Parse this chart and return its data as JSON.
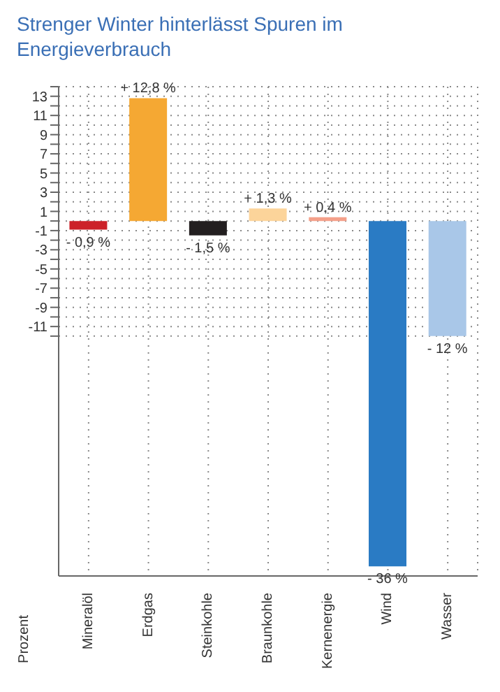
{
  "chart_data": {
    "type": "bar",
    "title": "Strenger Winter hinterlässt Spuren im Energieverbrauch",
    "ylabel": "Prozent",
    "categories": [
      "Mineralöl",
      "Erdgas",
      "Steinkohle",
      "Braunkohle",
      "Kernenergie",
      "Wind",
      "Wasser"
    ],
    "values": [
      -0.9,
      12.8,
      -1.5,
      1.3,
      0.4,
      -36,
      -12
    ],
    "value_labels": [
      "- 0,9 %",
      "+ 12,8 %",
      "- 1,5 %",
      "+ 1,3 %",
      "+ 0,4 %",
      "- 36 %",
      "- 12 %"
    ],
    "colors": [
      "#cc2229",
      "#f5a833",
      "#231f20",
      "#fcd49a",
      "#f4a08a",
      "#2a7bc4",
      "#a9c7e8"
    ],
    "ylim": [
      -37,
      14
    ],
    "yticks": [
      {
        "value": 14,
        "label": null
      },
      13,
      {
        "value": 12,
        "label": null
      },
      11,
      {
        "value": 10,
        "label": null
      },
      9,
      {
        "value": 8,
        "label": null
      },
      7,
      {
        "value": 6,
        "label": null
      },
      5,
      {
        "value": 4,
        "label": null
      },
      3,
      {
        "value": 2,
        "label": null
      },
      1,
      {
        "value": 0,
        "label": null
      },
      -1,
      {
        "value": -2,
        "label": null
      },
      -3,
      {
        "value": -4,
        "label": null
      },
      -5,
      {
        "value": -6,
        "label": null
      },
      -7,
      {
        "value": -8,
        "label": null
      },
      -9,
      {
        "value": -10,
        "label": null
      },
      -11,
      {
        "value": -12,
        "label": null
      }
    ],
    "grid": true
  }
}
